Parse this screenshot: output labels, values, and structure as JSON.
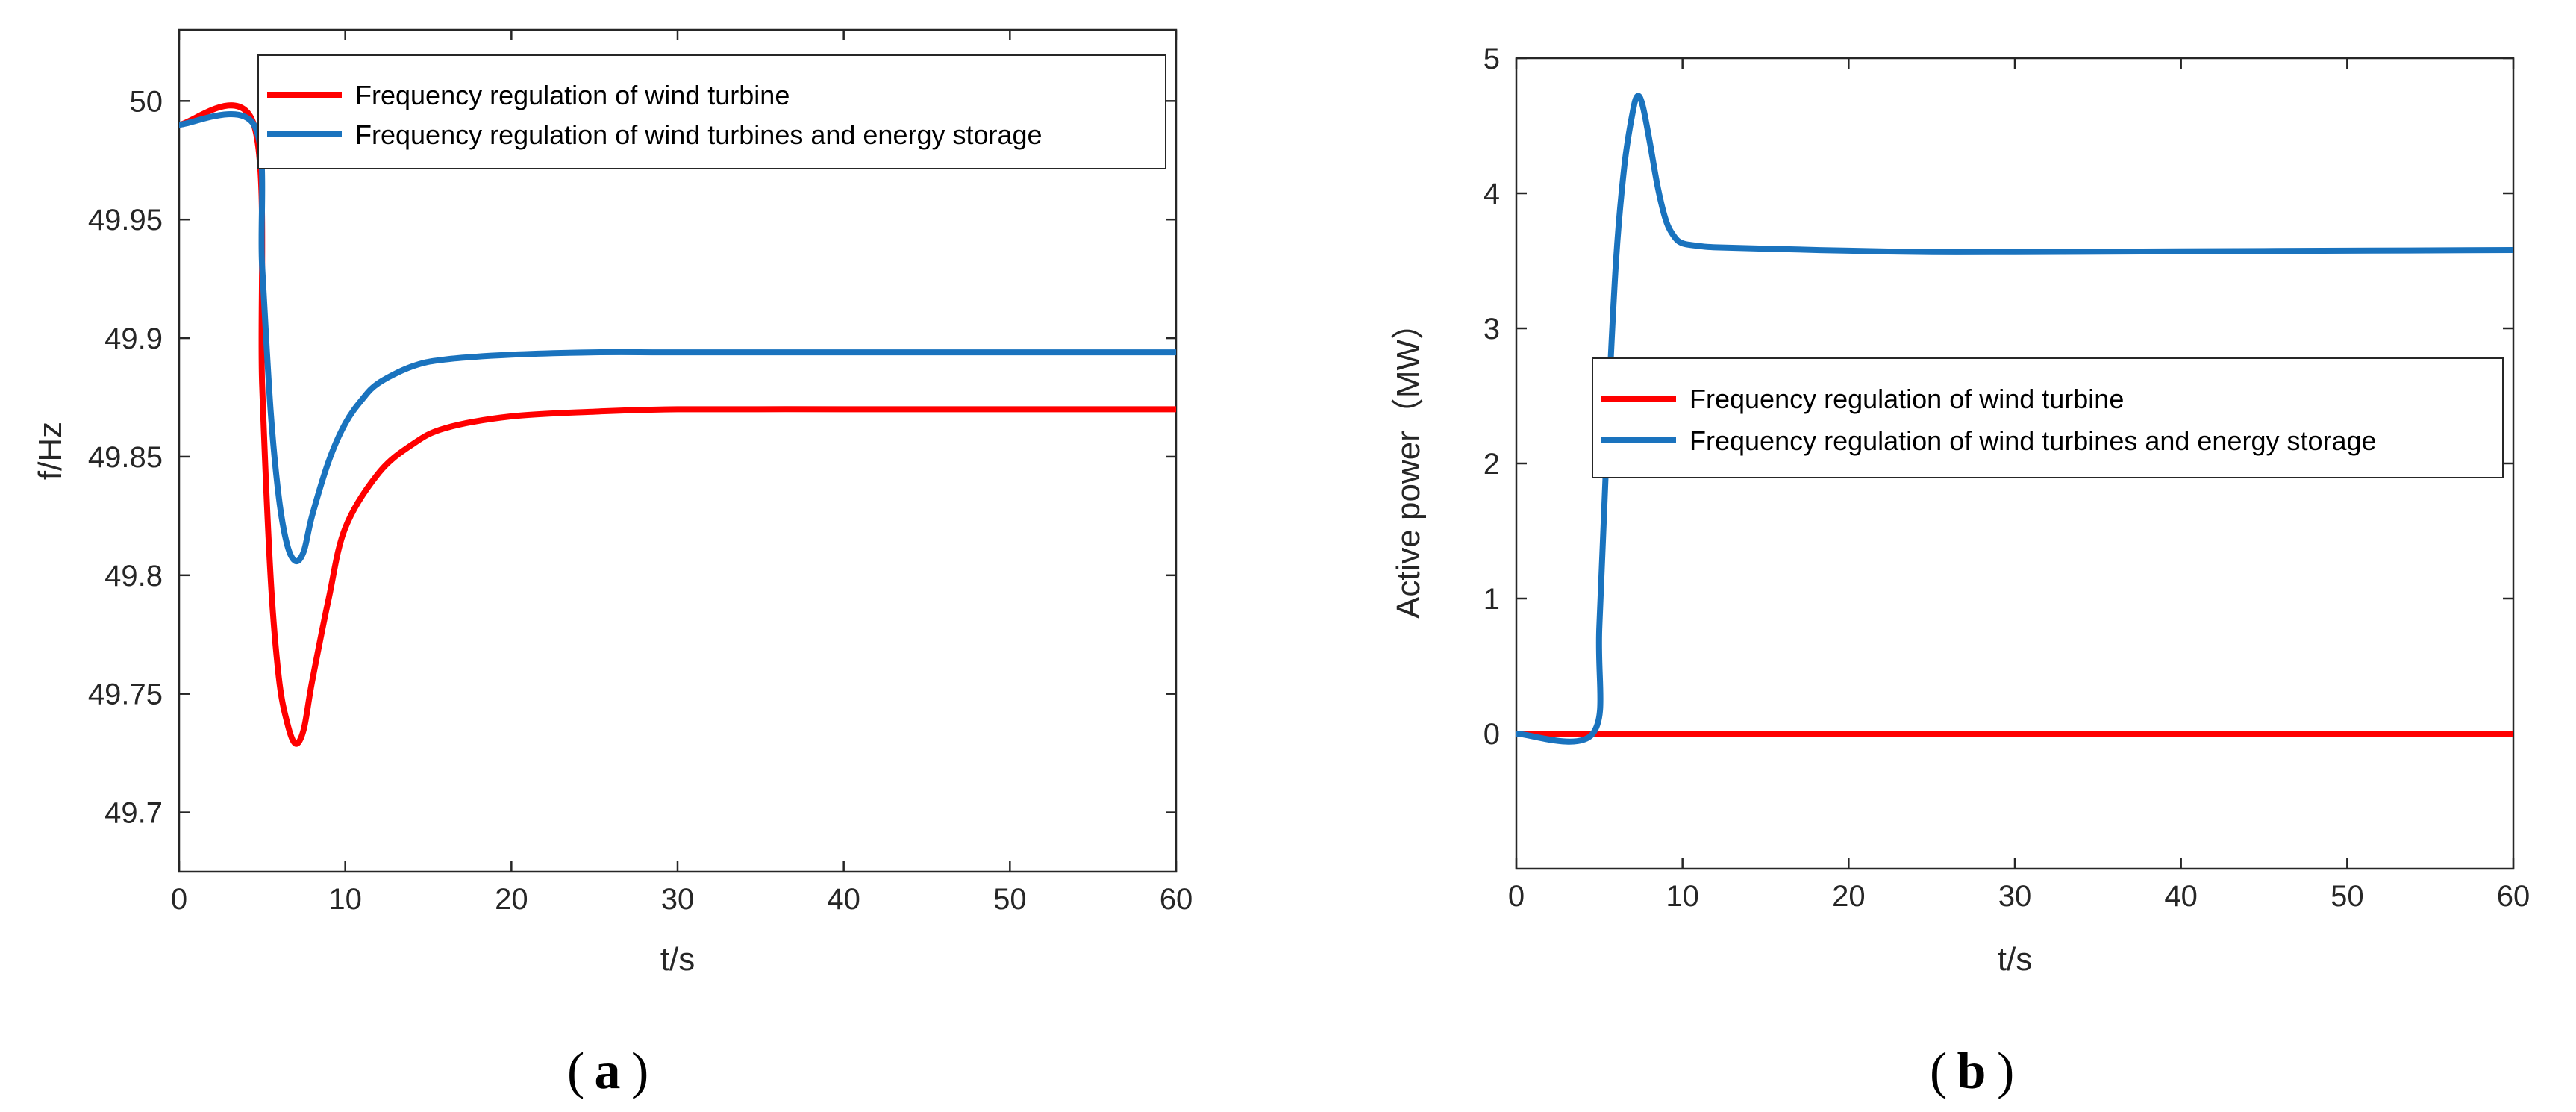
{
  "colors": {
    "red": "#ff0000",
    "blue": "#1a73be"
  },
  "chart_data": [
    {
      "type": "line",
      "panel_label": "a",
      "title": "",
      "xlabel": "t/s",
      "ylabel": "f/Hz",
      "xlim": [
        0,
        60
      ],
      "ylim": [
        49.675,
        50.03
      ],
      "xticks": [
        0,
        10,
        20,
        30,
        40,
        50,
        60
      ],
      "yticks": [
        49.7,
        49.75,
        49.8,
        49.85,
        49.9,
        49.95,
        50
      ],
      "ytick_labels": [
        "49.7",
        "49.75",
        "49.8",
        "49.85",
        "49.9",
        "49.95",
        "50"
      ],
      "legend_position": "top-right",
      "series": [
        {
          "name": "Frequency regulation of wind turbine",
          "color": "#ff0000",
          "x": [
            0,
            4.5,
            5,
            5.5,
            6,
            6.5,
            7,
            7.5,
            8,
            9,
            10,
            12,
            14,
            16,
            20,
            25,
            30,
            40,
            50,
            60
          ],
          "y": [
            49.99,
            49.99,
            49.88,
            49.8,
            49.757,
            49.738,
            49.729,
            49.735,
            49.755,
            49.79,
            49.82,
            49.843,
            49.855,
            49.862,
            49.867,
            49.869,
            49.87,
            49.87,
            49.87,
            49.87
          ]
        },
        {
          "name": "Frequency regulation of wind turbines and energy storage",
          "color": "#1a73be",
          "x": [
            0,
            4.5,
            5,
            5.5,
            6,
            6.5,
            7,
            7.5,
            8,
            9,
            10,
            11,
            12,
            14,
            16,
            20,
            25,
            30,
            40,
            50,
            60
          ],
          "y": [
            49.99,
            49.99,
            49.93,
            49.87,
            49.833,
            49.813,
            49.806,
            49.81,
            49.825,
            49.848,
            49.864,
            49.874,
            49.881,
            49.888,
            49.891,
            49.893,
            49.894,
            49.894,
            49.894,
            49.894,
            49.894
          ]
        }
      ]
    },
    {
      "type": "line",
      "panel_label": "b",
      "title": "",
      "xlabel": "t/s",
      "ylabel": "Active power（MW）",
      "xlim": [
        0,
        60
      ],
      "ylim": [
        -1,
        5
      ],
      "xticks": [
        0,
        10,
        20,
        30,
        40,
        50,
        60
      ],
      "yticks": [
        0,
        1,
        2,
        3,
        4,
        5
      ],
      "ytick_labels": [
        "0",
        "1",
        "2",
        "3",
        "4",
        "5"
      ],
      "legend_position": "center-right",
      "series": [
        {
          "name": "Frequency regulation of wind turbine",
          "color": "#ff0000",
          "x": [
            0,
            60
          ],
          "y": [
            0,
            0
          ]
        },
        {
          "name": "Frequency regulation of wind turbines and energy storage",
          "color": "#1a73be",
          "x": [
            0,
            4.6,
            5,
            5.5,
            6,
            6.5,
            7,
            7.3,
            7.6,
            8,
            8.5,
            9,
            9.5,
            10,
            11,
            12,
            15,
            20,
            25,
            30,
            40,
            50,
            60
          ],
          "y": [
            0,
            0,
            0.8,
            2.3,
            3.5,
            4.2,
            4.6,
            4.72,
            4.65,
            4.4,
            4.05,
            3.8,
            3.68,
            3.63,
            3.61,
            3.6,
            3.59,
            3.575,
            3.565,
            3.565,
            3.57,
            3.575,
            3.58
          ]
        }
      ]
    }
  ]
}
